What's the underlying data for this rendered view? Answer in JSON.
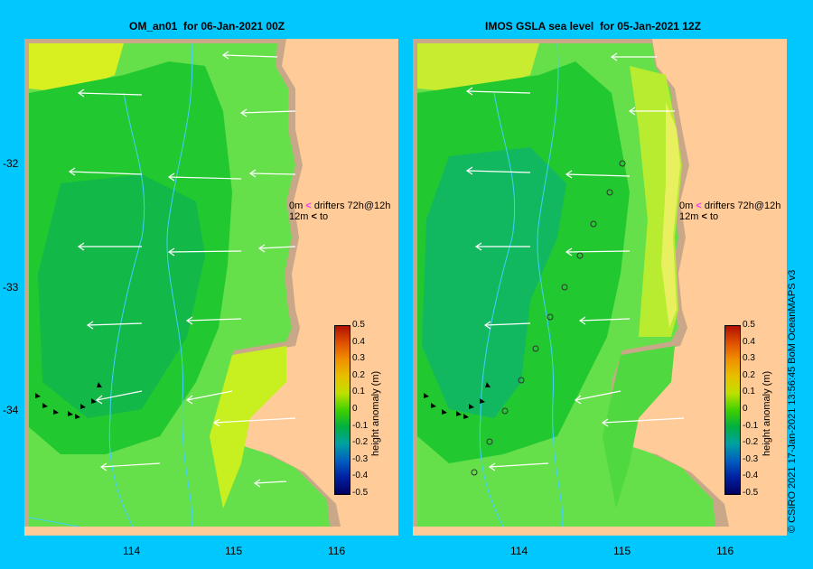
{
  "panels": [
    {
      "title": "OM_an01  for 06-Jan-2021 00Z",
      "lon_ticks": [
        "114",
        "115",
        "116"
      ]
    },
    {
      "title": "IMOS GSLA sea level  for 05-Jan-2021 12Z",
      "lon_ticks": [
        "114",
        "115",
        "116"
      ]
    }
  ],
  "lat_ticks": [
    "-32",
    "-33",
    "-34"
  ],
  "colorbar": {
    "title": "height anomaly (m)",
    "ticks": [
      "0.5",
      "0.4",
      "0.3",
      "0.2",
      "0.1",
      "0",
      "-0.1",
      "-0.2",
      "-0.3",
      "-0.4",
      "-0.5"
    ],
    "colors": [
      "#b01000",
      "#e05000",
      "#f09000",
      "#e8c000",
      "#c0e000",
      "#40d000",
      "#00b040",
      "#00a0a0",
      "#0060c0",
      "#0020a0",
      "#000060"
    ]
  },
  "legend": {
    "line1_depth": "0m",
    "line1_text": "drifters 72h@12h",
    "line2_depth": "12m",
    "line2_text": "to",
    "line1_color": "#ff30ff",
    "line2_color": "#000000"
  },
  "credit": "© CSIRO 2021   17-Jan-2021 13:56:45 BoM OceanMAPS v3",
  "colors": {
    "land": "#ffcc99",
    "shelf": "#c8a888",
    "background": "#00c8ff",
    "isobath": "#40d0ff",
    "vector": "#ffffff"
  }
}
